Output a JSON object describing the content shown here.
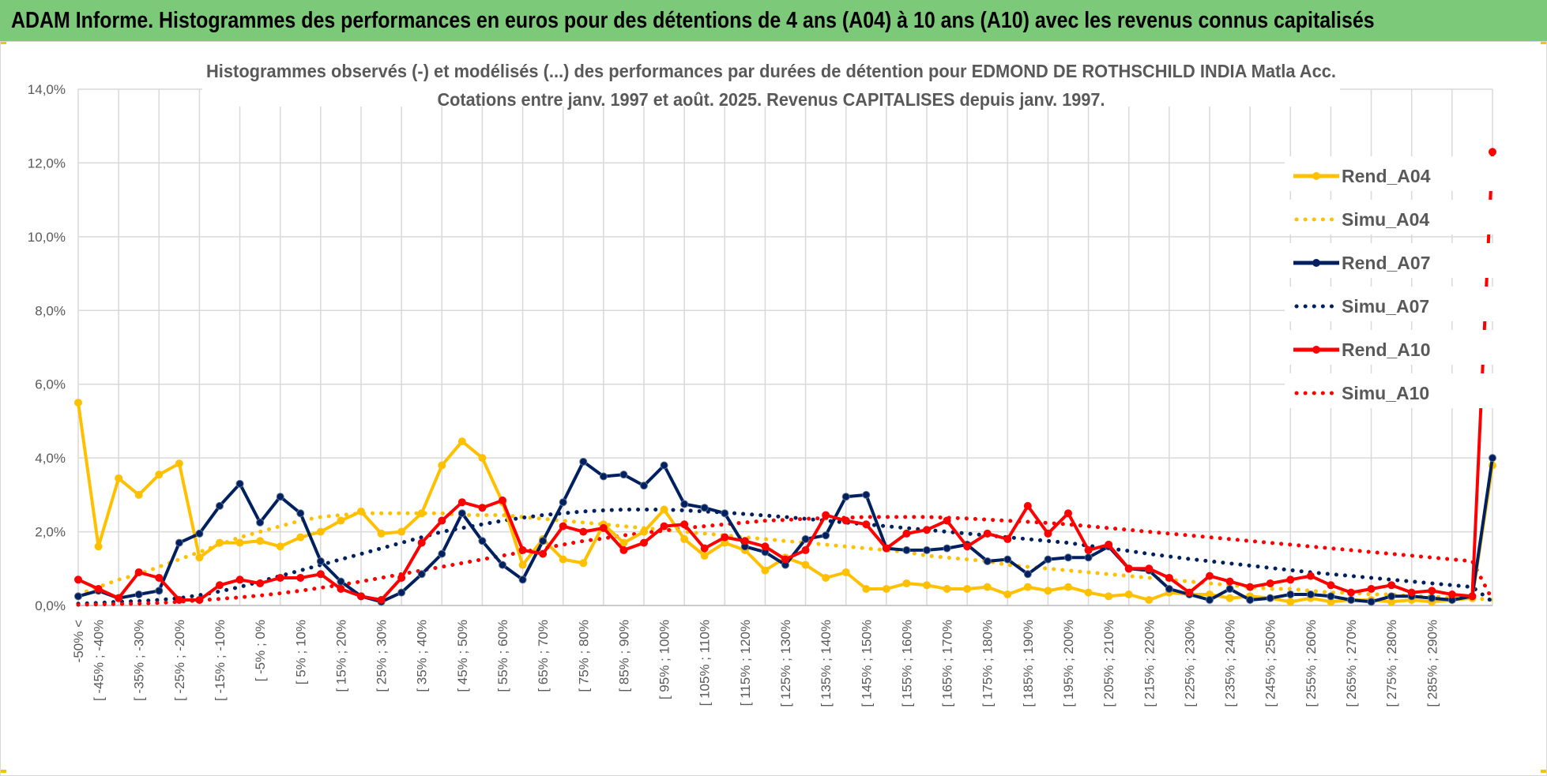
{
  "banner": {
    "text": "ADAM Informe. Histogrammes des performances en euros pour des détentions de 4 ans (A04) à 10 ans (A10) avec les revenus connus capitalisés"
  },
  "colors": {
    "banner_bg": "#7cc97a",
    "A04": "#ffc000",
    "A07": "#002060",
    "A10": "#ff0000",
    "grid": "#d9d9d9",
    "text": "#595959"
  },
  "chart_data": {
    "type": "line",
    "title": "Histogrammes observés (-) et modélisés (...) des performances par durées de détention pour EDMOND DE ROTHSCHILD INDIA Matla Acc.",
    "subtitle": "Cotations entre janv. 1997 et août. 2025. Revenus CAPITALISES depuis janv. 1997.",
    "xlabel": "",
    "ylabel": "",
    "ylim": [
      0,
      14
    ],
    "yticks": [
      "0,0%",
      "2,0%",
      "4,0%",
      "6,0%",
      "8,0%",
      "10,0%",
      "12,0%",
      "14,0%"
    ],
    "grid": true,
    "legend_position": "right",
    "x_tick_labels": [
      "-50% <",
      "[ -45% ; -40%",
      "[ -35% ; -30%",
      "[ -25% ; -20%",
      "[ -15% ; -10%",
      "[ -5% ; 0%",
      "[ 5% ; 10%",
      "[ 15% ; 20%",
      "[ 25% ; 30%",
      "[ 35% ; 40%",
      "[ 45% ; 50%",
      "[ 55% ; 60%",
      "[ 65% ; 70%",
      "[ 75% ; 80%",
      "[ 85% ; 90%",
      "[ 95% ; 100%",
      "[ 105% ; 110%",
      "[ 115% ; 120%",
      "[ 125% ; 130%",
      "[ 135% ; 140%",
      "[ 145% ; 150%",
      "[ 155% ; 160%",
      "[ 165% ; 170%",
      "[ 175% ; 180%",
      "[ 185% ; 190%",
      "[ 195% ; 200%",
      "[ 205% ; 210%",
      "[ 215% ; 220%",
      "[ 225% ; 230%",
      "[ 235% ; 240%",
      "[ 245% ; 250%",
      "[ 255% ; 260%",
      "[ 265% ; 270%",
      "[ 275% ; 280%",
      "[ 285% ; 290%"
    ],
    "series": [
      {
        "name": "Rend_A04",
        "style": "solid",
        "color": "#ffc000",
        "values": [
          5.5,
          1.6,
          3.45,
          3.0,
          3.55,
          3.85,
          1.3,
          1.7,
          1.7,
          1.75,
          1.6,
          1.85,
          2.0,
          2.3,
          2.55,
          1.95,
          2.0,
          2.5,
          3.8,
          4.45,
          4.0,
          2.8,
          1.1,
          1.8,
          1.25,
          1.15,
          2.2,
          1.7,
          2.0,
          2.6,
          1.8,
          1.35,
          1.7,
          1.5,
          0.95,
          1.3,
          1.1,
          0.75,
          0.9,
          0.45,
          0.45,
          0.6,
          0.55,
          0.45,
          0.45,
          0.5,
          0.3,
          0.5,
          0.4,
          0.5,
          0.35,
          0.25,
          0.3,
          0.15,
          0.35,
          0.3,
          0.3,
          0.2,
          0.25,
          0.2,
          0.1,
          0.2,
          0.1,
          0.15,
          0.15,
          0.1,
          0.15,
          0.1,
          0.15,
          0.2,
          3.8
        ]
      },
      {
        "name": "Simu_A04",
        "style": "dotted",
        "color": "#ffc000",
        "values": [
          0.3,
          0.5,
          0.7,
          0.85,
          1.05,
          1.25,
          1.45,
          1.65,
          1.85,
          2.0,
          2.15,
          2.3,
          2.4,
          2.45,
          2.5,
          2.5,
          2.5,
          2.5,
          2.5,
          2.45,
          2.45,
          2.45,
          2.4,
          2.35,
          2.3,
          2.25,
          2.2,
          2.15,
          2.1,
          2.05,
          2.0,
          1.95,
          1.9,
          1.85,
          1.8,
          1.75,
          1.7,
          1.65,
          1.6,
          1.55,
          1.5,
          1.45,
          1.35,
          1.3,
          1.25,
          1.2,
          1.1,
          1.05,
          1.0,
          0.95,
          0.9,
          0.85,
          0.8,
          0.75,
          0.7,
          0.65,
          0.6,
          0.55,
          0.5,
          0.45,
          0.45,
          0.4,
          0.35,
          0.35,
          0.3,
          0.3,
          0.25,
          0.25,
          0.2,
          0.2,
          0.15
        ]
      },
      {
        "name": "Rend_A07",
        "style": "solid",
        "color": "#002060",
        "values": [
          0.25,
          0.4,
          0.2,
          0.3,
          0.4,
          1.7,
          1.95,
          2.7,
          3.3,
          2.25,
          2.95,
          2.5,
          1.2,
          0.65,
          0.25,
          0.1,
          0.35,
          0.85,
          1.4,
          2.5,
          1.75,
          1.1,
          0.7,
          1.75,
          2.8,
          3.9,
          3.5,
          3.55,
          3.25,
          3.8,
          2.75,
          2.65,
          2.5,
          1.6,
          1.45,
          1.1,
          1.8,
          1.9,
          2.95,
          3.0,
          1.55,
          1.5,
          1.5,
          1.55,
          1.65,
          1.2,
          1.25,
          0.85,
          1.25,
          1.3,
          1.3,
          1.6,
          1.0,
          0.95,
          0.45,
          0.3,
          0.15,
          0.45,
          0.15,
          0.2,
          0.3,
          0.3,
          0.25,
          0.15,
          0.1,
          0.25,
          0.25,
          0.2,
          0.15,
          0.25,
          4.0
        ]
      },
      {
        "name": "Simu_A07",
        "style": "dotted",
        "color": "#002060",
        "values": [
          0.05,
          0.07,
          0.1,
          0.12,
          0.15,
          0.2,
          0.28,
          0.38,
          0.5,
          0.65,
          0.8,
          0.95,
          1.1,
          1.25,
          1.4,
          1.55,
          1.7,
          1.85,
          2.0,
          2.1,
          2.2,
          2.3,
          2.38,
          2.45,
          2.5,
          2.55,
          2.58,
          2.6,
          2.6,
          2.6,
          2.58,
          2.55,
          2.52,
          2.48,
          2.44,
          2.4,
          2.35,
          2.3,
          2.25,
          2.2,
          2.15,
          2.1,
          2.05,
          2.0,
          1.95,
          1.9,
          1.85,
          1.8,
          1.75,
          1.7,
          1.62,
          1.55,
          1.48,
          1.4,
          1.33,
          1.26,
          1.2,
          1.14,
          1.08,
          1.02,
          0.96,
          0.9,
          0.85,
          0.8,
          0.75,
          0.7,
          0.65,
          0.6,
          0.55,
          0.5,
          0.1
        ]
      },
      {
        "name": "Rend_A10",
        "style": "solid",
        "color": "#ff0000",
        "values": [
          0.7,
          0.45,
          0.2,
          0.9,
          0.75,
          0.15,
          0.15,
          0.55,
          0.7,
          0.6,
          0.75,
          0.75,
          0.85,
          0.45,
          0.25,
          0.15,
          0.75,
          1.7,
          2.3,
          2.8,
          2.65,
          2.85,
          1.5,
          1.4,
          2.15,
          2.0,
          2.1,
          1.5,
          1.7,
          2.15,
          2.2,
          1.55,
          1.85,
          1.75,
          1.6,
          1.25,
          1.5,
          2.45,
          2.3,
          2.2,
          1.55,
          1.95,
          2.05,
          2.3,
          1.6,
          1.95,
          1.8,
          2.7,
          1.95,
          2.5,
          1.5,
          1.65,
          1.0,
          1.0,
          0.75,
          0.35,
          0.8,
          0.65,
          0.5,
          0.6,
          0.7,
          0.8,
          0.55,
          0.35,
          0.45,
          0.55,
          0.35,
          0.4,
          0.3,
          0.25,
          12.3
        ]
      },
      {
        "name": "Simu_A10",
        "style": "dotted",
        "color": "#ff0000",
        "values": [
          0.02,
          0.03,
          0.04,
          0.05,
          0.07,
          0.1,
          0.14,
          0.18,
          0.22,
          0.27,
          0.33,
          0.4,
          0.48,
          0.56,
          0.65,
          0.75,
          0.85,
          0.95,
          1.05,
          1.15,
          1.25,
          1.35,
          1.45,
          1.55,
          1.65,
          1.75,
          1.82,
          1.9,
          1.97,
          2.03,
          2.1,
          2.15,
          2.2,
          2.25,
          2.3,
          2.32,
          2.35,
          2.37,
          2.38,
          2.4,
          2.4,
          2.4,
          2.4,
          2.38,
          2.36,
          2.33,
          2.3,
          2.27,
          2.24,
          2.2,
          2.15,
          2.1,
          2.05,
          2.0,
          1.95,
          1.9,
          1.85,
          1.8,
          1.75,
          1.7,
          1.65,
          1.6,
          1.55,
          1.5,
          1.45,
          1.4,
          1.35,
          1.3,
          1.25,
          1.2,
          0.15
        ]
      }
    ]
  }
}
